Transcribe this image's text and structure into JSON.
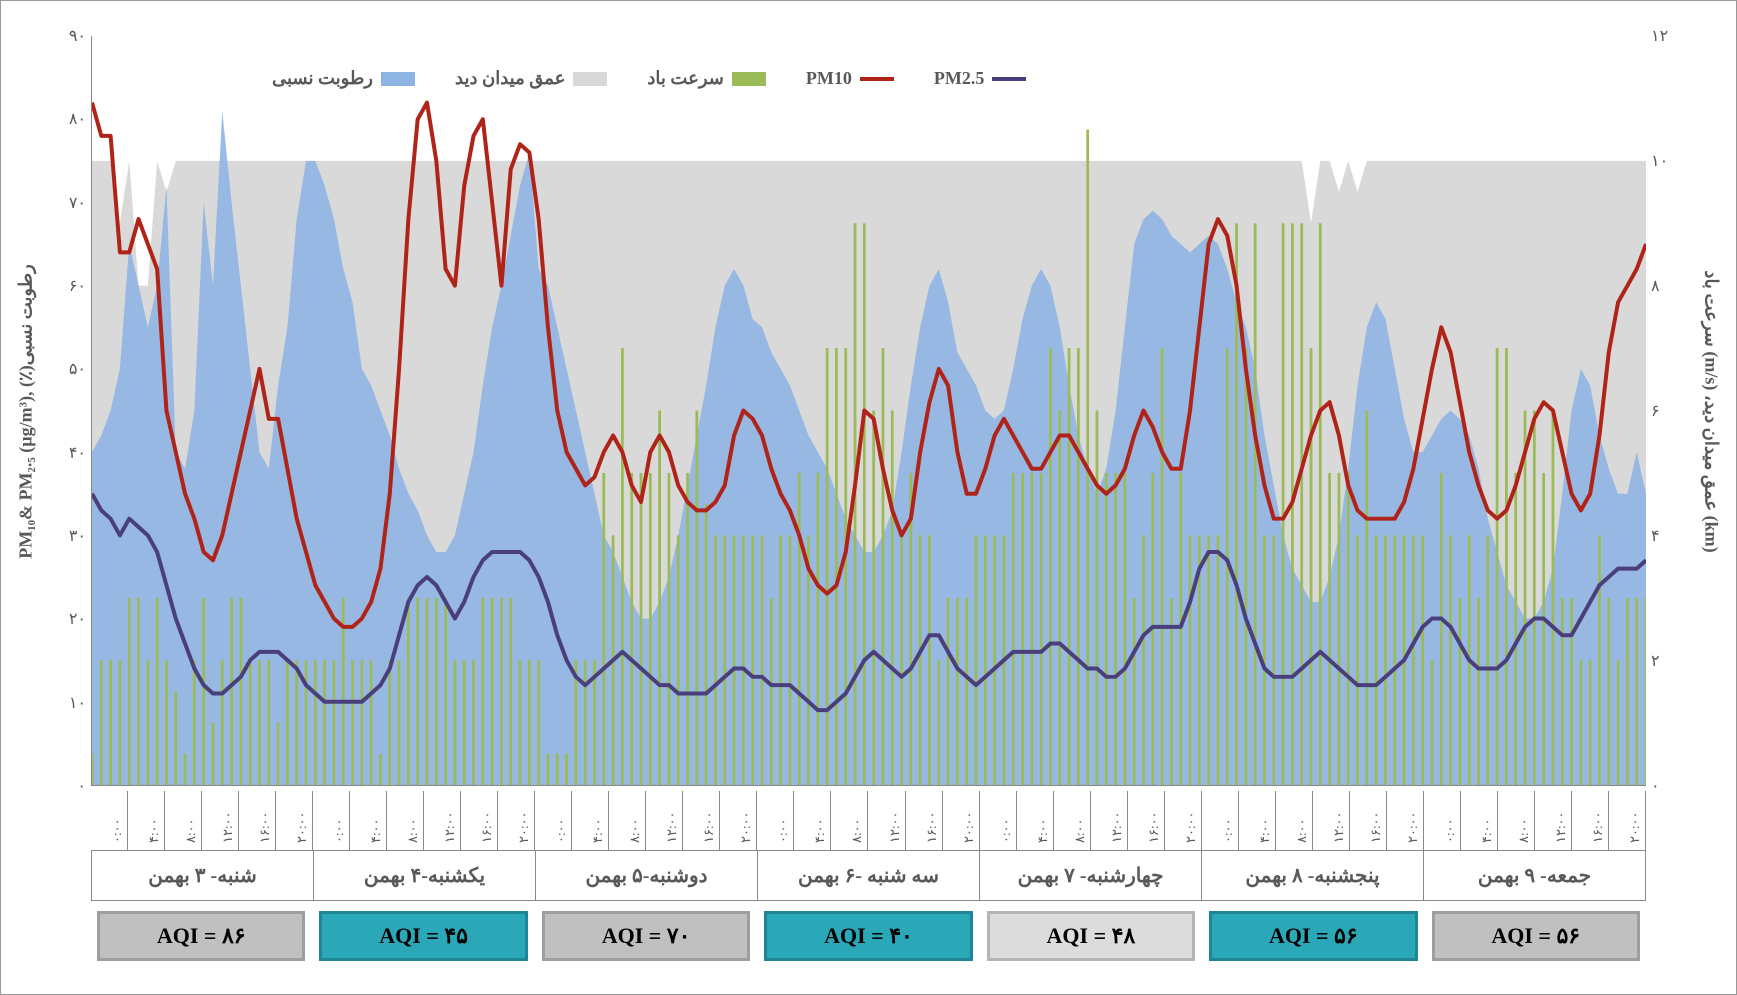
{
  "chart": {
    "type": "combo-line-area-bar-dual-axis",
    "background_color": "#ffffff",
    "grid_color": "#bfbfbf",
    "axis_color": "#808080",
    "text_color": "#595959",
    "font_family": "Times New Roman / Tahoma",
    "y_left": {
      "title": "PM₁₀& PM₂.₅ (µg/m³), (٪)رطوبت نسبی",
      "min": 0,
      "max": 90,
      "ticks": [
        "۰",
        "۱۰",
        "۲۰",
        "۳۰",
        "۴۰",
        "۵۰",
        "۶۰",
        "۷۰",
        "۸۰",
        "۹۰"
      ],
      "tick_values": [
        0,
        10,
        20,
        30,
        40,
        50,
        60,
        70,
        80,
        90
      ],
      "title_fontsize": 18,
      "tick_fontsize": 16
    },
    "y_right": {
      "title": "سرعت باد (m/s) ،عمق میدان دید (km)",
      "min": 0,
      "max": 12,
      "ticks": [
        "۰",
        "۲",
        "۴",
        "۶",
        "۸",
        "۱۰",
        "۱۲"
      ],
      "tick_values": [
        0,
        2,
        4,
        6,
        8,
        10,
        12
      ],
      "title_fontsize": 18,
      "tick_fontsize": 16
    },
    "x_hours_labels": [
      "۰:۰۰",
      "۴:۰۰",
      "۸:۰۰",
      "۱۲:۰۰",
      "۱۶:۰۰",
      "۲۰:۰۰"
    ],
    "days": [
      "شنبه- ۳ بهمن",
      "یکشنبه-۴ بهمن",
      "دوشنبه-۵ بهمن",
      "سه شنبه -۶ بهمن",
      "چهارشنبه- ۷ بهمن",
      "پنجشنبه- ۸ بهمن",
      "جمعه- ۹ بهمن"
    ],
    "aqi_boxes": [
      {
        "label": "AQI = ۸۶",
        "bg": "#c0c0c0",
        "border": "#9e9e9e",
        "text": "#000000"
      },
      {
        "label": "AQI = ۴۵",
        "bg": "#2aa8b8",
        "border": "#1f8695",
        "text": "#000000"
      },
      {
        "label": "AQI = ۷۰",
        "bg": "#c0c0c0",
        "border": "#9e9e9e",
        "text": "#000000"
      },
      {
        "label": "AQI = ۴۰",
        "bg": "#2aa8b8",
        "border": "#1f8695",
        "text": "#000000"
      },
      {
        "label": "AQI = ۴۸",
        "bg": "#dcdcdc",
        "border": "#b5b5b5",
        "text": "#000000"
      },
      {
        "label": "AQI = ۵۶",
        "bg": "#2aa8b8",
        "border": "#1f8695",
        "text": "#000000"
      },
      {
        "label": "AQI = ۵۶",
        "bg": "#c0c0c0",
        "border": "#9e9e9e",
        "text": "#000000"
      }
    ],
    "legend": [
      {
        "label": "رطوبت نسبی",
        "type": "area",
        "color": "#8eb4e3"
      },
      {
        "label": "عمق میدان دید",
        "type": "area",
        "color": "#d9d9d9"
      },
      {
        "label": "سرعت باد",
        "type": "bar",
        "color": "#9bbb59"
      },
      {
        "label": "PM10",
        "type": "line",
        "color": "#b02318"
      },
      {
        "label": "PM2.5",
        "type": "line",
        "color": "#4a3f7a"
      }
    ],
    "series": {
      "visibility_km": {
        "axis": "right",
        "type": "area",
        "color": "#d9d9d9",
        "opacity": 1.0,
        "values": [
          10,
          10,
          10,
          9,
          10,
          8,
          8,
          10,
          9.5,
          10,
          10,
          10,
          10,
          10,
          10,
          10,
          10,
          10,
          10,
          10,
          10,
          10,
          10,
          10,
          10,
          10,
          10,
          10,
          10,
          10,
          10,
          10,
          10,
          10,
          10,
          10,
          10,
          10,
          10,
          10,
          10,
          10,
          10,
          10,
          10,
          10,
          10,
          10,
          10,
          10,
          10,
          10,
          10,
          10,
          10,
          10,
          10,
          10,
          10,
          10,
          10,
          10,
          10,
          10,
          10,
          10,
          10,
          10,
          10,
          10,
          10,
          10,
          10,
          10,
          10,
          10,
          10,
          10,
          10,
          10,
          10,
          10,
          10,
          10,
          10,
          10,
          10,
          10,
          10,
          10,
          10,
          10,
          10,
          10,
          10,
          10,
          10,
          10,
          10,
          10,
          10,
          10,
          10,
          10,
          10,
          10,
          10,
          10,
          10,
          10,
          10,
          10,
          10,
          10,
          10,
          10,
          10,
          10,
          10,
          10,
          10,
          10,
          10,
          10,
          10,
          10,
          10,
          10,
          10,
          10,
          10,
          9,
          10,
          10,
          9.5,
          10,
          9.5,
          10,
          10,
          10,
          10,
          10,
          10,
          10,
          10,
          10,
          10,
          10,
          10,
          10,
          10,
          10,
          10,
          10,
          10,
          10,
          10,
          10,
          10,
          10,
          10,
          10,
          10,
          10,
          10,
          10,
          10,
          10
        ]
      },
      "humidity_pct": {
        "axis": "left",
        "type": "area",
        "color": "#8eb4e3",
        "opacity": 0.9,
        "values": [
          40,
          42,
          45,
          50,
          65,
          60,
          55,
          60,
          72,
          40,
          38,
          45,
          70,
          60,
          81,
          70,
          60,
          50,
          40,
          38,
          48,
          55,
          68,
          75,
          75,
          72,
          68,
          62,
          58,
          50,
          48,
          45,
          42,
          38,
          35,
          33,
          30,
          28,
          28,
          30,
          35,
          40,
          48,
          55,
          60,
          66,
          72,
          76,
          62,
          60,
          55,
          50,
          45,
          40,
          35,
          30,
          28,
          25,
          22,
          20,
          20,
          22,
          25,
          30,
          36,
          42,
          48,
          55,
          60,
          62,
          60,
          56,
          55,
          52,
          50,
          48,
          45,
          42,
          40,
          38,
          35,
          32,
          30,
          28,
          28,
          30,
          33,
          40,
          48,
          55,
          60,
          62,
          58,
          52,
          50,
          48,
          45,
          44,
          45,
          50,
          56,
          60,
          62,
          60,
          55,
          48,
          42,
          38,
          35,
          38,
          45,
          55,
          65,
          68,
          69,
          68,
          66,
          65,
          64,
          65,
          66,
          65,
          62,
          58,
          55,
          50,
          42,
          36,
          30,
          26,
          24,
          22,
          22,
          25,
          30,
          38,
          48,
          55,
          58,
          56,
          50,
          44,
          40,
          40,
          42,
          44,
          45,
          44,
          42,
          38,
          32,
          28,
          24,
          22,
          20,
          20,
          22,
          26,
          35,
          45,
          50,
          48,
          42,
          38,
          35,
          35,
          40,
          35
        ]
      },
      "wind_mps": {
        "axis": "right",
        "type": "bar",
        "color": "#9bbb59",
        "bar_width_ratio": 0.3,
        "values": [
          0.5,
          2,
          2,
          2,
          3,
          3,
          2,
          3,
          2,
          1.5,
          0.5,
          2,
          3,
          1,
          2,
          3,
          3,
          2,
          2,
          2,
          1,
          2,
          2,
          2,
          2,
          2,
          2,
          3,
          2,
          2,
          2,
          0.5,
          2,
          2,
          3,
          3,
          3,
          3,
          3,
          2,
          2,
          2,
          3,
          3,
          3,
          3,
          2,
          2,
          2,
          0.5,
          0.5,
          0.5,
          2,
          2,
          2,
          5,
          4,
          7,
          5,
          5,
          5,
          6,
          5,
          4,
          5,
          6,
          4.5,
          4,
          4,
          4,
          4,
          4,
          4,
          3,
          4,
          4,
          5,
          4,
          5,
          7,
          7,
          7,
          9,
          9,
          6,
          7,
          6,
          4,
          5,
          4,
          4,
          2,
          3,
          3,
          3,
          4,
          4,
          4,
          4,
          5,
          5,
          5,
          5,
          7,
          6,
          7,
          7,
          10.5,
          6,
          5,
          5,
          5,
          3,
          4,
          5,
          7,
          3,
          5,
          4,
          4,
          4,
          4,
          7,
          9,
          7,
          9,
          4,
          4,
          9,
          9,
          9,
          7,
          9,
          5,
          5,
          5,
          4,
          6,
          4,
          4,
          4,
          4,
          4,
          4,
          2,
          5,
          4,
          3,
          4,
          3,
          4,
          7,
          7,
          5,
          6,
          6,
          5,
          6,
          3,
          3,
          2,
          2,
          4,
          3,
          2,
          3,
          3,
          3
        ]
      },
      "pm10": {
        "axis": "left",
        "type": "line",
        "color": "#b02318",
        "line_width": 4,
        "values": [
          82,
          78,
          78,
          64,
          64,
          68,
          65,
          62,
          45,
          40,
          35,
          32,
          28,
          27,
          30,
          35,
          40,
          45,
          50,
          44,
          44,
          38,
          32,
          28,
          24,
          22,
          20,
          19,
          19,
          20,
          22,
          26,
          35,
          50,
          68,
          80,
          82,
          75,
          62,
          60,
          72,
          78,
          80,
          70,
          60,
          74,
          77,
          76,
          68,
          55,
          45,
          40,
          38,
          36,
          37,
          40,
          42,
          40,
          36,
          34,
          40,
          42,
          40,
          36,
          34,
          33,
          33,
          34,
          36,
          42,
          45,
          44,
          42,
          38,
          35,
          33,
          30,
          26,
          24,
          23,
          24,
          28,
          36,
          45,
          44,
          38,
          33,
          30,
          32,
          40,
          46,
          50,
          48,
          40,
          35,
          35,
          38,
          42,
          44,
          42,
          40,
          38,
          38,
          40,
          42,
          42,
          40,
          38,
          36,
          35,
          36,
          38,
          42,
          45,
          43,
          40,
          38,
          38,
          45,
          55,
          65,
          68,
          66,
          60,
          50,
          42,
          36,
          32,
          32,
          34,
          38,
          42,
          45,
          46,
          42,
          36,
          33,
          32,
          32,
          32,
          32,
          34,
          38,
          44,
          50,
          55,
          52,
          46,
          40,
          36,
          33,
          32,
          33,
          36,
          40,
          44,
          46,
          45,
          40,
          35,
          33,
          35,
          42,
          52,
          58,
          60,
          62,
          65
        ]
      },
      "pm25": {
        "axis": "left",
        "type": "line",
        "color": "#4a3f7a",
        "line_width": 4,
        "values": [
          35,
          33,
          32,
          30,
          32,
          31,
          30,
          28,
          24,
          20,
          17,
          14,
          12,
          11,
          11,
          12,
          13,
          15,
          16,
          16,
          16,
          15,
          14,
          12,
          11,
          10,
          10,
          10,
          10,
          10,
          11,
          12,
          14,
          18,
          22,
          24,
          25,
          24,
          22,
          20,
          22,
          25,
          27,
          28,
          28,
          28,
          28,
          27,
          25,
          22,
          18,
          15,
          13,
          12,
          13,
          14,
          15,
          16,
          15,
          14,
          13,
          12,
          12,
          11,
          11,
          11,
          11,
          12,
          13,
          14,
          14,
          13,
          13,
          12,
          12,
          12,
          11,
          10,
          9,
          9,
          10,
          11,
          13,
          15,
          16,
          15,
          14,
          13,
          14,
          16,
          18,
          18,
          16,
          14,
          13,
          12,
          13,
          14,
          15,
          16,
          16,
          16,
          16,
          17,
          17,
          16,
          15,
          14,
          14,
          13,
          13,
          14,
          16,
          18,
          19,
          19,
          19,
          19,
          22,
          26,
          28,
          28,
          27,
          24,
          20,
          17,
          14,
          13,
          13,
          13,
          14,
          15,
          16,
          15,
          14,
          13,
          12,
          12,
          12,
          13,
          14,
          15,
          17,
          19,
          20,
          20,
          19,
          17,
          15,
          14,
          14,
          14,
          15,
          17,
          19,
          20,
          20,
          19,
          18,
          18,
          20,
          22,
          24,
          25,
          26,
          26,
          26,
          27
        ]
      }
    }
  }
}
